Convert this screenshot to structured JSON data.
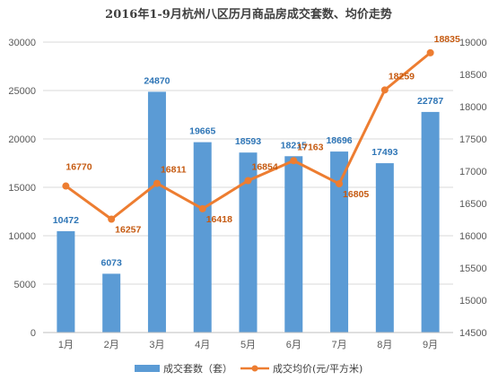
{
  "chart_data": {
    "type": "bar",
    "title": "2016年1-9月杭州八区历月商品房成交套数、均价走势",
    "categories": [
      "1月",
      "2月",
      "3月",
      "4月",
      "5月",
      "6月",
      "7月",
      "8月",
      "9月"
    ],
    "series": [
      {
        "name": "成交套数（套）",
        "type": "bar",
        "axis": "left",
        "color": "#5b9bd5",
        "values": [
          10472,
          6073,
          24870,
          19665,
          18593,
          18215,
          18696,
          17493,
          22787
        ]
      },
      {
        "name": "成交均价(元/平方米)",
        "type": "line",
        "axis": "right",
        "color": "#ed7d31",
        "values": [
          16770,
          16257,
          16811,
          16418,
          16854,
          17163,
          16805,
          18259,
          18835
        ]
      }
    ],
    "y_left": {
      "min": 0,
      "max": 30000,
      "step": 5000
    },
    "y_right": {
      "min": 14500,
      "max": 19000,
      "step": 500
    },
    "grid": true,
    "legend_position": "bottom"
  }
}
